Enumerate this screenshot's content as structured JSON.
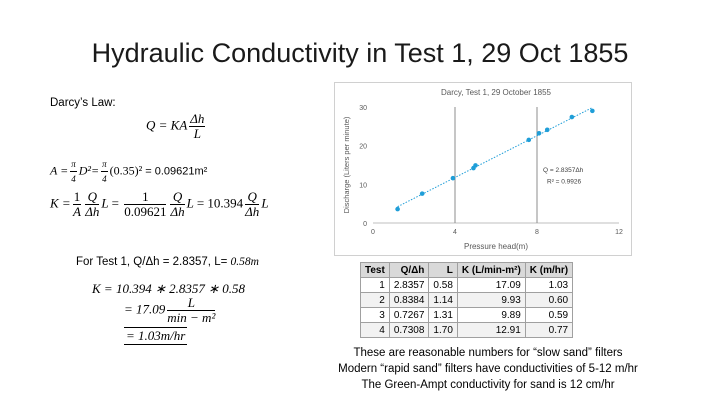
{
  "title": "Hydraulic Conductivity in Test 1, 29 Oct 1855",
  "left": {
    "darcy_label": "Darcy’s Law:",
    "eq1": {
      "lhs": "Q = KA",
      "num": "Δh",
      "den": "L"
    },
    "eq2": {
      "a": "A =",
      "pi_num": "π",
      "pi_den": "4",
      "d2": "D²=",
      "d_val": "(0.35)²",
      "result": " = 0.09621m²"
    },
    "eq3": {
      "k": "K =",
      "one": "1",
      "A": "A",
      "Q": "Q",
      "dh": "Δh",
      "L": "L",
      "eq": "=",
      "c1_den": "0.09621",
      "eq2": "= 10.394",
      "L2": "L"
    },
    "test1_label": "For Test 1, Q/Δh = 2.8357, L= ",
    "test1_L": "0.58m",
    "calc1": "K =  10.394 ∗ 2.8357  ∗ 0.58",
    "calc2_lhs": "= 17.09",
    "calc2_num": "L",
    "calc2_den": "min − m²",
    "calc3": "= 1.03m/hr"
  },
  "chart_data": {
    "type": "scatter",
    "title": "Darcy, Test 1, 29 October 1855",
    "xlabel": "Pressure head(m)",
    "ylabel": "Discharge (Liters per minute)",
    "xlim": [
      0,
      12
    ],
    "ylim": [
      0,
      30
    ],
    "xticks": [
      "0",
      "4",
      "8",
      "12"
    ],
    "yticks": [
      "0",
      "10",
      "20",
      "30"
    ],
    "x": [
      1.2,
      2.4,
      3.9,
      4.9,
      5.0,
      7.6,
      8.1,
      8.5,
      9.7,
      10.7
    ],
    "y": [
      3.6,
      7.6,
      11.6,
      14.2,
      14.9,
      21.5,
      23.2,
      24.1,
      27.4,
      29.0
    ],
    "trendline": "Q = 2.8357Δh",
    "r2": "R² = 0.9926",
    "vlines": [
      4,
      8
    ],
    "point_color": "#1f9ed8",
    "grid": false
  },
  "table": {
    "headers": [
      "Test",
      "Q/Δh",
      "L",
      "K (L/min-m²)",
      "K (m/hr)"
    ],
    "rows": [
      [
        "1",
        "2.8357",
        "0.58",
        "17.09",
        "1.03"
      ],
      [
        "2",
        "0.8384",
        "1.14",
        "9.93",
        "0.60"
      ],
      [
        "3",
        "0.7267",
        "1.31",
        "9.89",
        "0.59"
      ],
      [
        "4",
        "0.7308",
        "1.70",
        "12.91",
        "0.77"
      ]
    ]
  },
  "notes": [
    "These are reasonable numbers  for “slow sand” filters",
    "Modern “rapid sand” filters have conductivities of 5-12 m/hr",
    "The Green-Ampt conductivity for sand is 12 cm/hr"
  ]
}
